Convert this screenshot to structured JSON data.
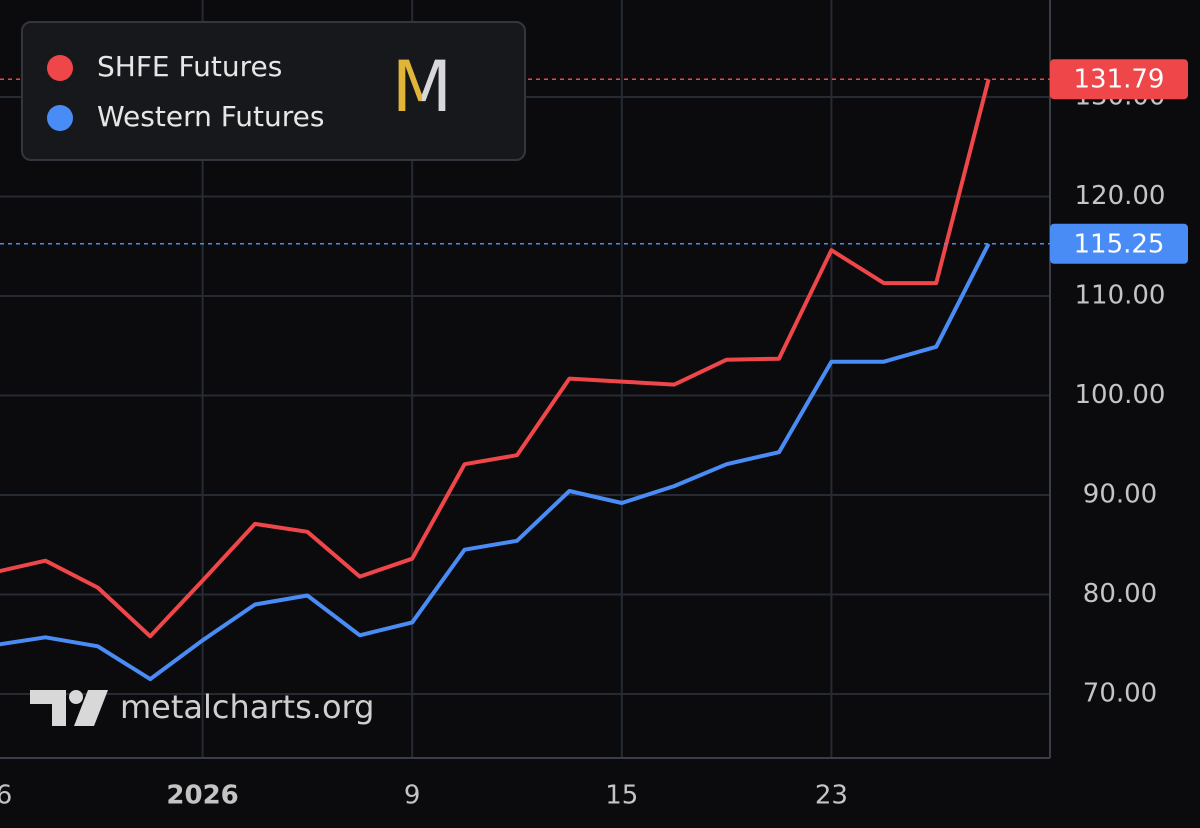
{
  "chart_data": {
    "type": "line",
    "categories": [
      "6",
      null,
      null,
      null,
      "2026",
      null,
      null,
      null,
      "9",
      null,
      null,
      null,
      "15",
      null,
      null,
      null,
      "23",
      null,
      null,
      null
    ],
    "series": [
      {
        "name": "SHFE Futures",
        "color": "#ef4649",
        "values": [
          82.2,
          83.4,
          80.7,
          75.8,
          81.4,
          87.1,
          86.3,
          81.8,
          83.6,
          93.1,
          94.0,
          101.7,
          101.4,
          101.1,
          103.6,
          103.7,
          114.6,
          111.3,
          111.3,
          131.79
        ]
      },
      {
        "name": "Western Futures",
        "color": "#4a8cf6",
        "values": [
          74.9,
          75.7,
          74.8,
          71.5,
          75.4,
          79.0,
          79.9,
          75.9,
          77.2,
          84.5,
          85.4,
          90.4,
          89.2,
          90.9,
          93.1,
          94.3,
          103.4,
          103.4,
          104.9,
          115.25
        ]
      }
    ],
    "ylim": [
      63.57,
      139.75
    ],
    "yticks": [
      {
        "value": 70,
        "label": "70.00"
      },
      {
        "value": 80,
        "label": "80.00"
      },
      {
        "value": 90,
        "label": "90.00"
      },
      {
        "value": 100,
        "label": "100.00"
      },
      {
        "value": 110,
        "label": "110.00"
      },
      {
        "value": 120,
        "label": "120.00"
      },
      {
        "value": 130,
        "label": "130.00"
      }
    ],
    "grid": true,
    "legend": "upper left",
    "logo": "M",
    "watermark": "metalcharts.org"
  }
}
